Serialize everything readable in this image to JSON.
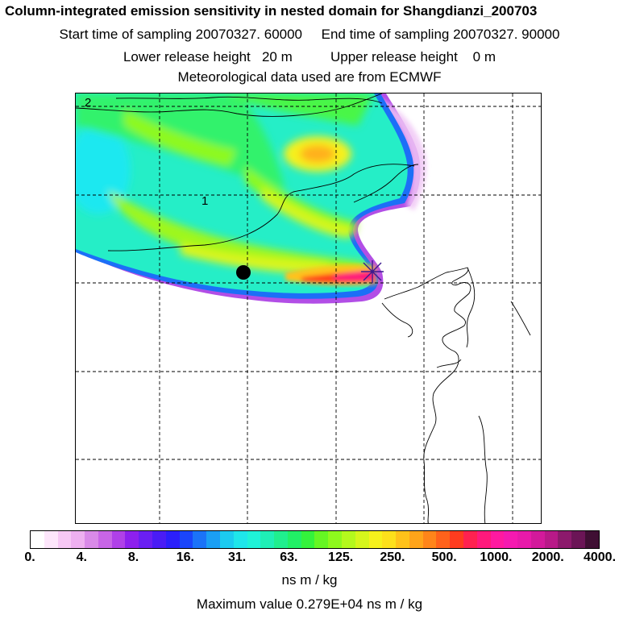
{
  "title": "Column-integrated emission sensitivity in nested domain for Shangdianzi_200703",
  "line1": "Start time of sampling 20070327. 60000     End time of sampling 20070327. 90000",
  "line2": "Lower release height   20 m          Upper release height    0 m",
  "line3": "Meteorological data used are from ECMWF",
  "map": {
    "contour_labels": [
      "2",
      "1"
    ],
    "receptor_marker": "star-cross",
    "station_marker": "black-dot"
  },
  "colorbar": {
    "colors": [
      "#ffffff",
      "#fde6fb",
      "#f7c8f5",
      "#eeb0f0",
      "#d98ae8",
      "#c865e6",
      "#b040e8",
      "#8d20ee",
      "#6a1ff2",
      "#4a1cf5",
      "#2b1ffb",
      "#1a45fb",
      "#1b73f8",
      "#1b9ff4",
      "#1ccbf0",
      "#1fe6ea",
      "#1ff2d8",
      "#1fefb6",
      "#20ef8e",
      "#21f066",
      "#34f33c",
      "#66f623",
      "#8ef91d",
      "#b4f91d",
      "#d6f61c",
      "#f6f11c",
      "#fde01b",
      "#ffc21a",
      "#ffa41a",
      "#ff851a",
      "#ff621b",
      "#ff3c1f",
      "#ff2250",
      "#ff1a7c",
      "#ff1aa0",
      "#f51ab0",
      "#e81aaa",
      "#d31a9b",
      "#b81a88",
      "#8c1a6c",
      "#6b1556",
      "#3f0f33"
    ],
    "tick_labels": [
      "0.",
      "4.",
      "8.",
      "16.",
      "31.",
      "63.",
      "125.",
      "250.",
      "500.",
      "1000.",
      "2000.",
      "4000."
    ],
    "units": "ns m / kg"
  },
  "max_value": "Maximum value  0.279E+04 ns m / kg"
}
